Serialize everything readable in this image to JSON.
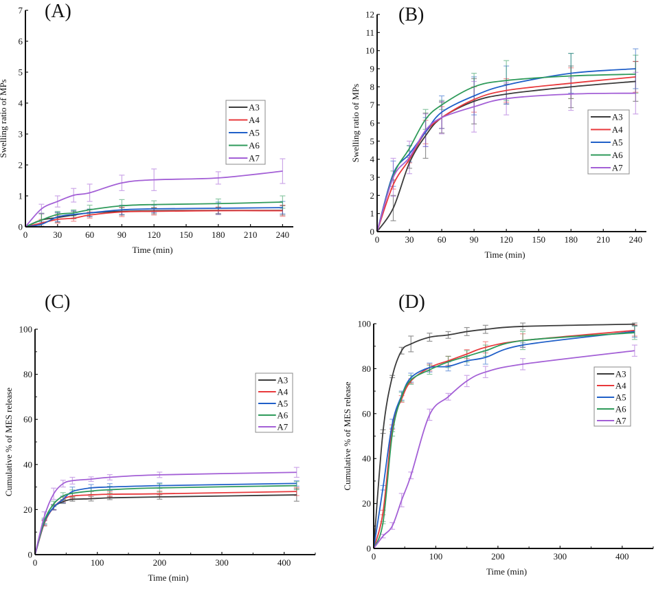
{
  "figure": {
    "series_colors": {
      "A3": "#3a3a3a",
      "A4": "#e8383b",
      "A5": "#1f5fc8",
      "A6": "#2e9a5a",
      "A7": "#a35fd6"
    }
  },
  "chart_data": [
    {
      "panel_label": "(A)",
      "type": "line",
      "title": "",
      "xlabel": "Time (min)",
      "ylabel": "Swelling ratio of MPs",
      "xlim": [
        0,
        250
      ],
      "ylim": [
        0,
        7
      ],
      "xticks": [
        0,
        30,
        60,
        90,
        120,
        150,
        180,
        210,
        240
      ],
      "yticks": [
        0,
        1,
        2,
        3,
        4,
        5,
        6,
        7
      ],
      "grid": false,
      "legend": {
        "position": "right-middle",
        "entries": [
          "A3",
          "A4",
          "A5",
          "A6",
          "A7"
        ]
      },
      "x": [
        0,
        15,
        30,
        45,
        60,
        90,
        120,
        180,
        240
      ],
      "series": [
        {
          "name": "A3",
          "values": [
            0,
            0.22,
            0.3,
            0.38,
            0.45,
            0.5,
            0.52,
            0.53,
            0.53
          ],
          "errors": [
            0,
            0.2,
            0.15,
            0.12,
            0.12,
            0.12,
            0.1,
            0.1,
            0.15
          ]
        },
        {
          "name": "A4",
          "values": [
            0,
            0.12,
            0.24,
            0.28,
            0.38,
            0.48,
            0.5,
            0.52,
            0.52
          ],
          "errors": [
            0,
            0.12,
            0.12,
            0.1,
            0.1,
            0.15,
            0.12,
            0.12,
            0.18
          ]
        },
        {
          "name": "A5",
          "values": [
            0,
            0.08,
            0.32,
            0.4,
            0.45,
            0.55,
            0.58,
            0.6,
            0.62
          ],
          "errors": [
            0,
            0.08,
            0.15,
            0.12,
            0.12,
            0.15,
            0.12,
            0.2,
            0.2
          ]
        },
        {
          "name": "A6",
          "values": [
            0,
            0.22,
            0.4,
            0.45,
            0.55,
            0.68,
            0.72,
            0.75,
            0.8
          ],
          "errors": [
            0,
            0.22,
            0.1,
            0.1,
            0.15,
            0.2,
            0.12,
            0.15,
            0.2
          ]
        },
        {
          "name": "A7",
          "values": [
            0,
            0.58,
            0.82,
            1.02,
            1.1,
            1.42,
            1.52,
            1.58,
            1.8
          ],
          "errors": [
            0,
            0.15,
            0.18,
            0.22,
            0.28,
            0.25,
            0.35,
            0.2,
            0.4
          ]
        }
      ]
    },
    {
      "panel_label": "(B)",
      "type": "line",
      "title": "",
      "xlabel": "Time (min)",
      "ylabel": "Swelling ratio of MPs",
      "xlim": [
        0,
        250
      ],
      "ylim": [
        0,
        12
      ],
      "xticks": [
        0,
        30,
        60,
        90,
        120,
        150,
        180,
        210,
        240
      ],
      "yticks": [
        0,
        1,
        2,
        3,
        4,
        5,
        6,
        7,
        8,
        9,
        10,
        11,
        12
      ],
      "grid": false,
      "legend": {
        "position": "bottom-right",
        "entries": [
          "A3",
          "A4",
          "A5",
          "A6",
          "A7"
        ]
      },
      "x": [
        0,
        15,
        30,
        45,
        60,
        90,
        120,
        180,
        240
      ],
      "series": [
        {
          "name": "A3",
          "values": [
            0,
            1.3,
            3.8,
            5.3,
            6.3,
            7.2,
            7.6,
            8.0,
            8.3
          ],
          "errors": [
            0,
            0.7,
            0.3,
            1.25,
            0.85,
            1.25,
            0.55,
            1.15,
            1.1
          ]
        },
        {
          "name": "A4",
          "values": [
            0,
            2.6,
            4.0,
            5.5,
            6.3,
            7.3,
            7.8,
            8.2,
            8.55
          ],
          "errors": [
            0,
            0.25,
            0.2,
            0.65,
            0.6,
            0.7,
            0.65,
            0.85,
            0.85
          ]
        },
        {
          "name": "A5",
          "values": [
            0,
            3.2,
            4.3,
            5.5,
            6.6,
            7.5,
            8.1,
            8.75,
            9.0
          ],
          "errors": [
            0,
            0.7,
            0.45,
            0.8,
            0.9,
            1.05,
            1.05,
            1.1,
            1.1
          ]
        },
        {
          "name": "A6",
          "values": [
            0,
            3.1,
            4.6,
            6.2,
            7.0,
            8.0,
            8.35,
            8.6,
            8.7
          ],
          "errors": [
            0,
            0.25,
            0.15,
            0.55,
            0.25,
            0.75,
            1.1,
            1.25,
            1.05
          ]
        },
        {
          "name": "A7",
          "values": [
            0,
            3.0,
            4.1,
            5.6,
            6.3,
            6.9,
            7.35,
            7.6,
            7.65
          ],
          "errors": [
            0,
            1.05,
            0.9,
            0.9,
            0.9,
            1.4,
            0.9,
            0.9,
            1.15
          ]
        }
      ]
    },
    {
      "panel_label": "(C)",
      "type": "line",
      "title": "",
      "xlabel": "Time (min)",
      "ylabel": "Cumulative % of MES release",
      "xlim": [
        0,
        450
      ],
      "ylim": [
        0,
        100
      ],
      "xticks": [
        0,
        100,
        200,
        300,
        400
      ],
      "yticks": [
        0,
        20,
        40,
        60,
        80,
        100
      ],
      "grid": false,
      "legend": {
        "position": "right-middle",
        "entries": [
          "A3",
          "A4",
          "A5",
          "A6",
          "A7"
        ]
      },
      "x": [
        0,
        15,
        30,
        45,
        60,
        90,
        120,
        200,
        420
      ],
      "series": [
        {
          "name": "A3",
          "values": [
            0,
            14,
            21,
            23.5,
            24.5,
            24.8,
            25.2,
            25.6,
            26.5
          ],
          "errors": [
            0,
            1.2,
            1,
            0.8,
            0.8,
            1,
            0.8,
            1,
            2.8
          ]
        },
        {
          "name": "A4",
          "values": [
            0,
            14,
            21,
            24.5,
            26,
            26.5,
            26.8,
            27,
            28
          ],
          "errors": [
            0,
            1.2,
            1.2,
            1.2,
            1.2,
            1.5,
            1.2,
            1.2,
            1.8
          ]
        },
        {
          "name": "A5",
          "values": [
            0,
            14.5,
            21,
            24.5,
            28,
            29.6,
            30,
            30.6,
            31.6
          ],
          "errors": [
            0,
            1.2,
            1.2,
            1.5,
            2,
            1.5,
            1.5,
            1.2,
            1.2
          ]
        },
        {
          "name": "A6",
          "values": [
            0,
            15,
            22.5,
            26,
            27.2,
            28.2,
            28.8,
            29.6,
            30.6
          ],
          "errors": [
            0,
            1.2,
            1.2,
            1.5,
            1.5,
            1.5,
            1.5,
            1.8,
            1.8
          ]
        },
        {
          "name": "A7",
          "values": [
            0,
            17,
            27,
            31.5,
            32.8,
            33.5,
            34.3,
            35.4,
            36.5
          ],
          "errors": [
            0,
            2,
            2.5,
            1.5,
            1.5,
            1,
            1.2,
            1.2,
            2.2
          ]
        }
      ]
    },
    {
      "panel_label": "(D)",
      "type": "line",
      "title": "",
      "xlabel": "Time (min)",
      "ylabel": "Cumulative % of MES release",
      "xlim": [
        0,
        450
      ],
      "ylim": [
        0,
        100
      ],
      "xticks": [
        0,
        100,
        200,
        300,
        400
      ],
      "yticks": [
        0,
        20,
        40,
        60,
        80,
        100
      ],
      "grid": false,
      "legend": {
        "position": "right-middle",
        "entries": [
          "A3",
          "A4",
          "A5",
          "A6",
          "A7"
        ]
      },
      "x": [
        0,
        15,
        30,
        45,
        60,
        90,
        120,
        150,
        180,
        240,
        420
      ],
      "series": [
        {
          "name": "A3",
          "values": [
            0,
            52,
            76.5,
            88,
            91,
            94,
            95,
            96.5,
            97.5,
            98.8,
            99.8
          ],
          "errors": [
            0,
            0.8,
            0.5,
            1.5,
            3.5,
            1.8,
            1.5,
            1.8,
            1.8,
            1.5,
            0.5
          ]
        },
        {
          "name": "A4",
          "values": [
            0,
            16,
            54,
            66.5,
            74.5,
            80.5,
            83.5,
            86.5,
            89.5,
            92.5,
            97
          ],
          "errors": [
            0,
            1,
            1,
            1.5,
            1,
            1.5,
            2,
            2,
            2.5,
            3,
            2.5
          ]
        },
        {
          "name": "A5",
          "values": [
            0,
            27,
            55.5,
            68,
            76,
            80.5,
            81,
            83.5,
            85,
            90.5,
            96.5
          ],
          "errors": [
            0,
            1,
            2,
            2,
            2,
            2,
            2,
            2,
            3,
            1,
            2.5
          ]
        },
        {
          "name": "A6",
          "values": [
            0,
            11.5,
            51,
            67.5,
            75,
            79.5,
            83,
            85.5,
            88,
            92.5,
            96
          ],
          "errors": [
            0,
            0.5,
            1,
            2,
            2,
            2,
            2.5,
            2.5,
            2.5,
            4,
            3
          ]
        },
        {
          "name": "A7",
          "values": [
            0,
            5.5,
            10,
            21.5,
            32.5,
            59.5,
            67.5,
            74.5,
            78.5,
            82,
            88
          ],
          "errors": [
            0,
            0.8,
            1.5,
            3,
            1.5,
            2.5,
            1.5,
            2.5,
            2.5,
            2.5,
            2.5
          ]
        }
      ]
    }
  ]
}
